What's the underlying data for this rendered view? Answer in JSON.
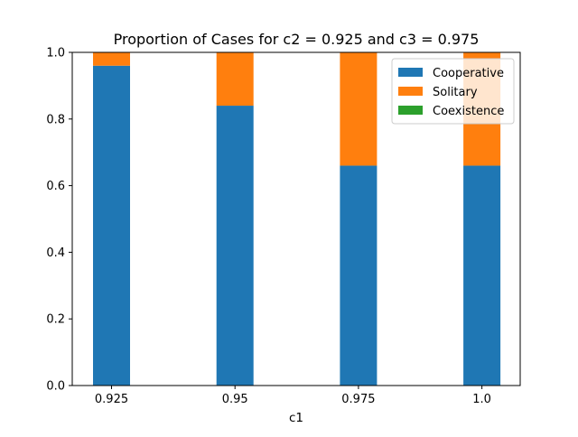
{
  "chart_data": {
    "type": "bar",
    "stacked": true,
    "title": "Proportion of Cases for c2 = 0.925 and c3 = 0.975",
    "xlabel": "c1",
    "ylabel": "",
    "categories": [
      "0.925",
      "0.95",
      "0.975",
      "1.0"
    ],
    "series": [
      {
        "name": "Cooperative",
        "color": "#1f77b4",
        "values": [
          0.96,
          0.84,
          0.66,
          0.66
        ]
      },
      {
        "name": "Solitary",
        "color": "#ff7f0e",
        "values": [
          0.04,
          0.16,
          0.34,
          0.34
        ]
      },
      {
        "name": "Coexistence",
        "color": "#2ca02c",
        "values": [
          0.0,
          0.0,
          0.0,
          0.0
        ]
      }
    ],
    "ylim": [
      0,
      1
    ],
    "yticks": [
      "0.0",
      "0.2",
      "0.4",
      "0.6",
      "0.8",
      "1.0"
    ],
    "grid": false,
    "legend_position": "top-right"
  }
}
